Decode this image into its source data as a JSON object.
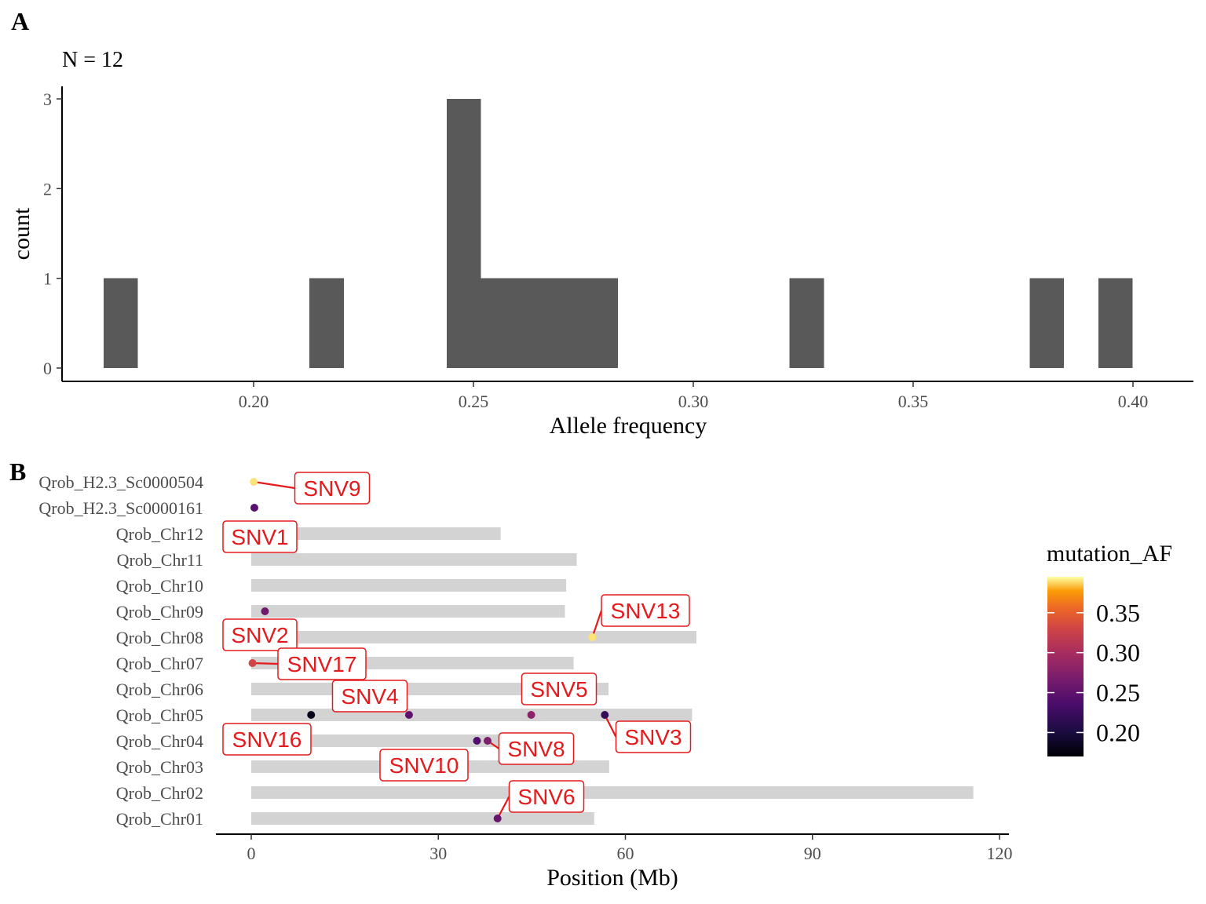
{
  "chart_data": [
    {
      "panel": "A",
      "type": "bar",
      "subtitle": "N = 12",
      "xlabel": "Allele frequency",
      "ylabel": "count",
      "xlim": [
        0.178,
        0.418
      ],
      "ylim": [
        0,
        3.0
      ],
      "xticks": [
        0.2,
        0.25,
        0.3,
        0.35,
        0.4
      ],
      "xtick_labels": [
        "0.20",
        "0.25",
        "0.30",
        "0.35",
        "0.40"
      ],
      "yticks": [
        0,
        1,
        2,
        3
      ],
      "ytick_labels": [
        "0",
        "1",
        "2",
        "3"
      ],
      "bar_color": "#595959",
      "bins": [
        {
          "x0": 0.1659,
          "x1": 0.1737,
          "count": 1
        },
        {
          "x0": 0.2127,
          "x1": 0.2205,
          "count": 1
        },
        {
          "x0": 0.2439,
          "x1": 0.2517,
          "count": 3
        },
        {
          "x0": 0.2517,
          "x1": 0.2595,
          "count": 1
        },
        {
          "x0": 0.2595,
          "x1": 0.2673,
          "count": 1
        },
        {
          "x0": 0.2673,
          "x1": 0.2751,
          "count": 1
        },
        {
          "x0": 0.2751,
          "x1": 0.2829,
          "count": 1
        },
        {
          "x0": 0.3219,
          "x1": 0.3297,
          "count": 1
        },
        {
          "x0": 0.3765,
          "x1": 0.3843,
          "count": 1
        },
        {
          "x0": 0.3921,
          "x1": 0.3999,
          "count": 1
        }
      ]
    },
    {
      "panel": "B",
      "type": "scatter",
      "xlabel": "Position (Mb)",
      "xlim": [
        -6,
        122
      ],
      "xticks": [
        0,
        30,
        60,
        90,
        120
      ],
      "xtick_labels": [
        "0",
        "30",
        "60",
        "90",
        "120"
      ],
      "chromosomes": [
        {
          "name": "Qrob_Chr01",
          "length": 55.0
        },
        {
          "name": "Qrob_Chr02",
          "length": 115.8
        },
        {
          "name": "Qrob_Chr03",
          "length": 57.4
        },
        {
          "name": "Qrob_Chr04",
          "length": 40.0
        },
        {
          "name": "Qrob_Chr05",
          "length": 70.7
        },
        {
          "name": "Qrob_Chr06",
          "length": 57.3
        },
        {
          "name": "Qrob_Chr07",
          "length": 51.7
        },
        {
          "name": "Qrob_Chr08",
          "length": 71.4
        },
        {
          "name": "Qrob_Chr09",
          "length": 50.3
        },
        {
          "name": "Qrob_Chr10",
          "length": 50.5
        },
        {
          "name": "Qrob_Chr11",
          "length": 52.2
        },
        {
          "name": "Qrob_Chr12",
          "length": 40.0
        },
        {
          "name": "Qrob_H2.3_Sc0000161",
          "length": 0
        },
        {
          "name": "Qrob_H2.3_Sc0000504",
          "length": 0
        }
      ],
      "points": [
        {
          "chr": "Qrob_H2.3_Sc0000504",
          "pos": 0.4,
          "af": 0.39
        },
        {
          "chr": "Qrob_H2.3_Sc0000161",
          "pos": 0.5,
          "af": 0.245
        },
        {
          "chr": "Qrob_Chr09",
          "pos": 2.2,
          "af": 0.26
        },
        {
          "chr": "Qrob_Chr08",
          "pos": 54.7,
          "af": 0.39
        },
        {
          "chr": "Qrob_Chr07",
          "pos": 0.2,
          "af": 0.33
        },
        {
          "chr": "Qrob_Chr05",
          "pos": 9.6,
          "af": 0.18
        },
        {
          "chr": "Qrob_Chr05",
          "pos": 25.3,
          "af": 0.25
        },
        {
          "chr": "Qrob_Chr05",
          "pos": 44.9,
          "af": 0.28
        },
        {
          "chr": "Qrob_Chr05",
          "pos": 56.7,
          "af": 0.22
        },
        {
          "chr": "Qrob_Chr04",
          "pos": 36.2,
          "af": 0.24
        },
        {
          "chr": "Qrob_Chr04",
          "pos": 37.9,
          "af": 0.27
        },
        {
          "chr": "Qrob_Chr01",
          "pos": 39.5,
          "af": 0.255
        }
      ],
      "labels": [
        {
          "text": "SNV9",
          "chr": "Qrob_H2.3_Sc0000504",
          "pos": 0.4
        },
        {
          "text": "SNV1",
          "chr": "Qrob_Chr12",
          "pos": 0
        },
        {
          "text": "SNV13",
          "chr": "Qrob_Chr08",
          "pos": 54.7
        },
        {
          "text": "SNV2",
          "chr": "Qrob_Chr08",
          "pos": 0
        },
        {
          "text": "SNV17",
          "chr": "Qrob_Chr07",
          "pos": 0.2
        },
        {
          "text": "SNV4",
          "chr": "Qrob_Chr05",
          "pos": 25.3
        },
        {
          "text": "SNV5",
          "chr": "Qrob_Chr05",
          "pos": 44.9
        },
        {
          "text": "SNV16",
          "chr": "Qrob_Chr04",
          "pos": 0
        },
        {
          "text": "SNV3",
          "chr": "Qrob_Chr05",
          "pos": 56.7
        },
        {
          "text": "SNV8",
          "chr": "Qrob_Chr04",
          "pos": 37.9
        },
        {
          "text": "SNV10",
          "chr": "Qrob_Chr04",
          "pos": 36.2
        },
        {
          "text": "SNV6",
          "chr": "Qrob_Chr01",
          "pos": 39.5
        }
      ],
      "label_color": "#e41a1c",
      "chromosome_bar_color": "#d3d3d3",
      "legend": {
        "title": "mutation_AF",
        "placement": "right",
        "range": [
          0.17,
          0.395
        ],
        "ticks": [
          0.2,
          0.25,
          0.3,
          0.35
        ],
        "tick_labels": [
          "0.20",
          "0.25",
          "0.30",
          "0.35"
        ],
        "colormap": "inferno"
      }
    }
  ],
  "panels": {
    "a_tag": "A",
    "b_tag": "B"
  }
}
